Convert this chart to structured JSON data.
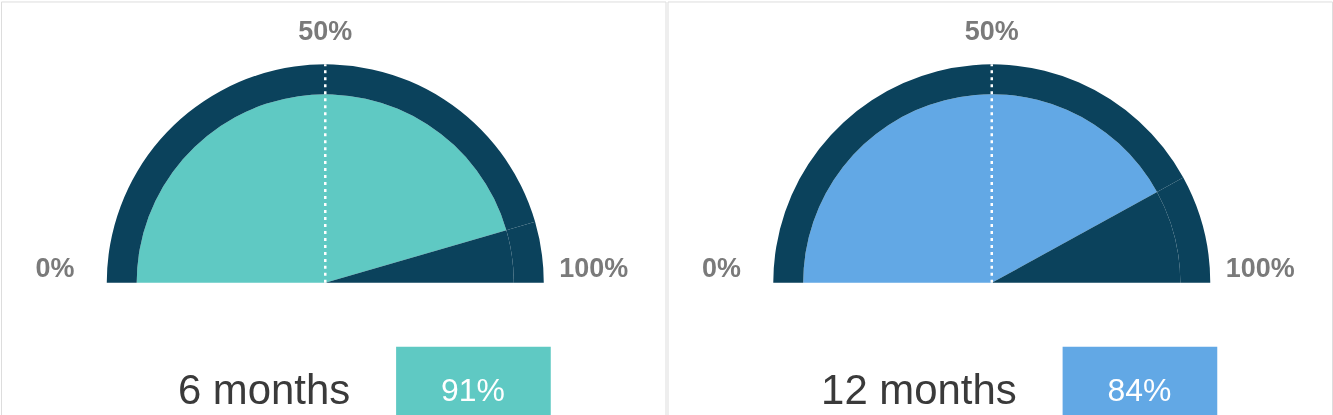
{
  "chart_data": [
    {
      "type": "pie",
      "xlabel": "6 months",
      "categories": [
        null,
        null
      ],
      "series": [
        {
          "values": [
            91,
            9
          ],
          "colors": [
            "#5fc9c3",
            "#0b425c"
          ]
        },
        {
          "values": [
            91,
            9
          ],
          "colors": [
            "#0b425c",
            "#0b425c"
          ]
        }
      ],
      "annotations": [
        "0%",
        "50%",
        "100%",
        "91%"
      ]
    },
    {
      "type": "pie",
      "xlabel": "12 months",
      "categories": [
        null,
        null
      ],
      "series": [
        {
          "values": [
            84,
            16
          ],
          "colors": [
            "#62a8e5",
            "#0b425c"
          ]
        },
        {
          "values": [
            84,
            16
          ],
          "colors": [
            "#0b425c",
            "#0b425c"
          ]
        }
      ],
      "annotations": [
        "0%",
        "50%",
        "100%",
        "84%"
      ]
    }
  ]
}
